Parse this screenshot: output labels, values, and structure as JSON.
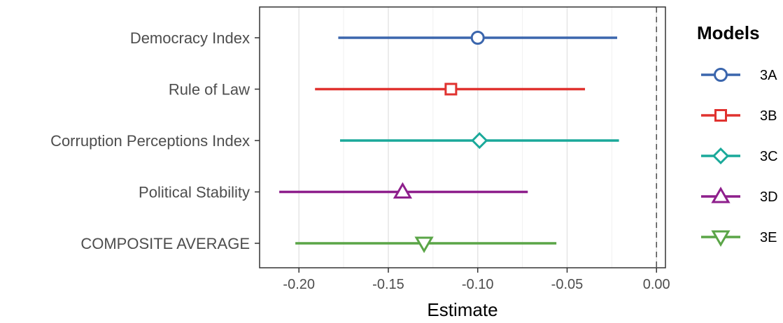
{
  "chart_data": {
    "type": "dot-and-whisker",
    "xlabel": "Estimate",
    "xlim": [
      -0.222,
      0.005
    ],
    "x_ticks": [
      -0.2,
      -0.15,
      -0.1,
      -0.05,
      0.0
    ],
    "x_tick_labels": [
      "-0.20",
      "-0.15",
      "-0.10",
      "-0.05",
      "0.00"
    ],
    "reference_line": 0,
    "grid": true,
    "categories": [
      "Democracy Index",
      "Rule of Law",
      "Corruption Perceptions Index",
      "Political Stability",
      "COMPOSITE AVERAGE"
    ],
    "legend": {
      "title": "Models",
      "position": "right"
    },
    "series": [
      {
        "name": "3A",
        "category": "Democracy Index",
        "estimate": -0.1,
        "low": -0.178,
        "high": -0.022,
        "color": "#3b66ad",
        "marker": "circle"
      },
      {
        "name": "3B",
        "category": "Rule of Law",
        "estimate": -0.115,
        "low": -0.191,
        "high": -0.04,
        "color": "#e0322f",
        "marker": "square"
      },
      {
        "name": "3C",
        "category": "Corruption Perceptions Index",
        "estimate": -0.099,
        "low": -0.177,
        "high": -0.021,
        "color": "#1aa99a",
        "marker": "diamond"
      },
      {
        "name": "3D",
        "category": "Political Stability",
        "estimate": -0.142,
        "low": -0.211,
        "high": -0.072,
        "color": "#8e1f8c",
        "marker": "triangle-up"
      },
      {
        "name": "3E",
        "category": "COMPOSITE AVERAGE",
        "estimate": -0.13,
        "low": -0.202,
        "high": -0.056,
        "color": "#5aa547",
        "marker": "triangle-down"
      }
    ]
  }
}
